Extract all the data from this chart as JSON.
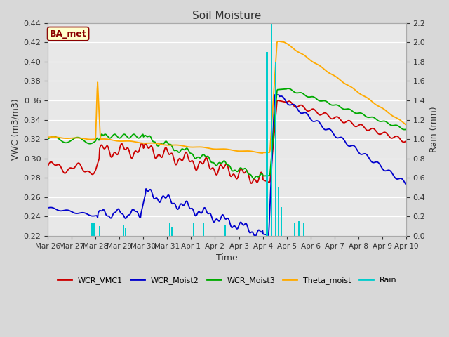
{
  "title": "Soil Moisture",
  "xlabel": "Time",
  "ylabel_left": "VWC (m3/m3)",
  "ylabel_right": "Rain (mm)",
  "ylim_left": [
    0.22,
    0.44
  ],
  "ylim_right": [
    0.0,
    2.2
  ],
  "fig_bg_color": "#d8d8d8",
  "plot_bg_color": "#e8e8e8",
  "annotation_text": "BA_met",
  "annotation_bg": "#ffffcc",
  "annotation_border": "#8b0000",
  "series_colors": {
    "WCR_VMC1": "#cc0000",
    "WCR_Moist2": "#0000cc",
    "WCR_Moist3": "#00aa00",
    "Theta_moist": "#ffaa00",
    "Rain": "#00cccc"
  },
  "x_tick_labels": [
    "Mar 26",
    "Mar 27",
    "Mar 28",
    "Mar 29",
    "Mar 30",
    "Mar 31",
    "Apr 1",
    "Apr 2",
    "Apr 3",
    "Apr 4",
    "Apr 5",
    "Apr 6",
    "Apr 7",
    "Apr 8",
    "Apr 9",
    "Apr 10"
  ],
  "x_tick_positions": [
    0,
    1,
    2,
    3,
    4,
    5,
    6,
    7,
    8,
    9,
    10,
    11,
    12,
    13,
    14,
    15
  ],
  "yticks_left": [
    0.22,
    0.24,
    0.26,
    0.28,
    0.3,
    0.32,
    0.34,
    0.36,
    0.38,
    0.4,
    0.42,
    0.44
  ],
  "yticks_right": [
    0.0,
    0.2,
    0.4,
    0.6,
    0.8,
    1.0,
    1.2,
    1.4,
    1.6,
    1.8,
    2.0,
    2.2
  ]
}
